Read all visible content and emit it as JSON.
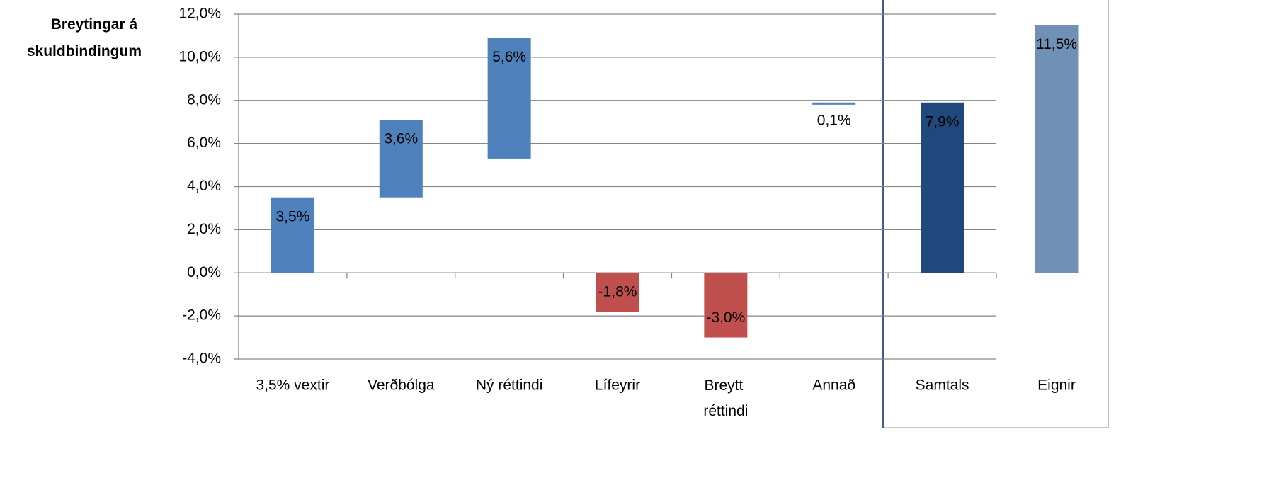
{
  "chart_data": {
    "type": "waterfall",
    "ylabel": "Breytingar á skuldbindingum",
    "categories": [
      "3,5% vextir",
      "Verðbólga",
      "Ný réttindi",
      "Lífeyrir",
      "Breytt réttindi",
      "Annað",
      "Samtals"
    ],
    "values": [
      3.5,
      3.6,
      5.6,
      -1.8,
      -3.0,
      0.1,
      7.9
    ],
    "value_labels": [
      "3,5%",
      "3,6%",
      "5,6%",
      "-1,8%",
      "-3,0%",
      "0,1%",
      "7,9%"
    ],
    "starts": [
      0,
      3.5,
      5.3,
      0,
      0,
      7.8,
      0
    ],
    "colors": [
      "#4f81bd",
      "#4f81bd",
      "#4f81bd",
      "#c0504d",
      "#c0504d",
      "#4f81bd",
      "#1f497d"
    ],
    "extra": {
      "category": "Eignir",
      "value": 11.5,
      "value_label": "11,5%",
      "color": "#7190b5"
    },
    "ylim": [
      -4,
      12
    ],
    "yticks": [
      {
        "value": -4,
        "label": "-4,0%"
      },
      {
        "value": -2,
        "label": "-2,0%"
      },
      {
        "value": 0,
        "label": "0,0%"
      },
      {
        "value": 2,
        "label": "2,0%"
      },
      {
        "value": 4,
        "label": "4,0%"
      },
      {
        "value": 6,
        "label": "6,0%"
      },
      {
        "value": 8,
        "label": "8,0%"
      },
      {
        "value": 10,
        "label": "10,0%"
      },
      {
        "value": 12,
        "label": "12,0%"
      }
    ],
    "grid": true
  }
}
